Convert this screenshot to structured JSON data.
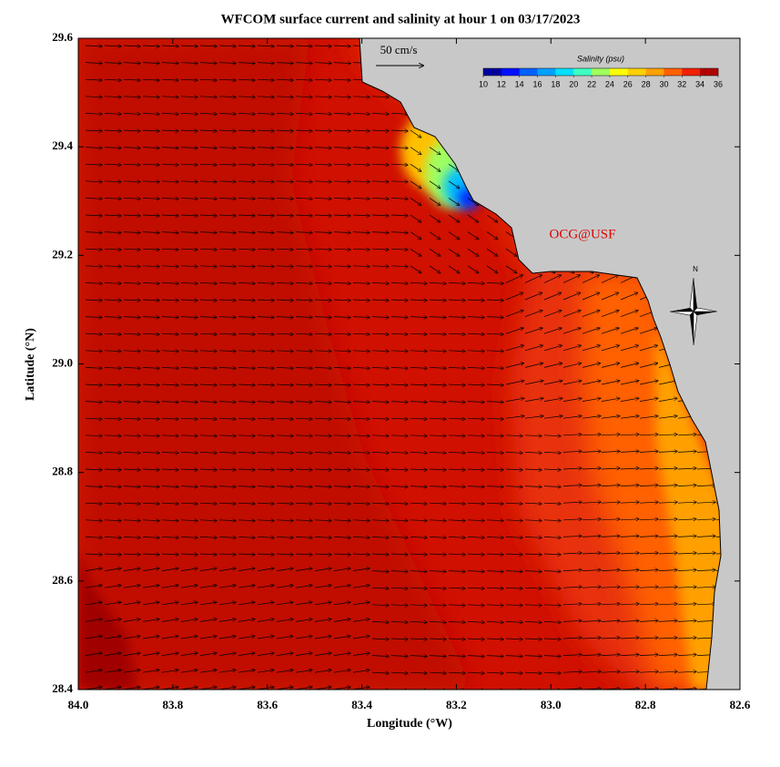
{
  "title": "WFCOM surface current and salinity at hour 1 on 03/17/2023",
  "x_axis": {
    "label": "Longitude (°W)",
    "lim": [
      84.0,
      82.6
    ],
    "ticks": [
      {
        "value": 84,
        "label": "84.0"
      },
      83.8,
      83.6,
      83.4,
      83.2,
      {
        "value": 83,
        "label": "83.0"
      },
      82.8,
      82.6
    ]
  },
  "y_axis": {
    "label": "Latitude (°N)",
    "lim": [
      28.4,
      29.6
    ],
    "ticks": [
      28.4,
      28.6,
      28.8,
      {
        "value": 29,
        "label": "29.0"
      },
      29.2,
      29.4,
      29.6
    ]
  },
  "colorbar": {
    "title": "Salinity (psu)",
    "lim": [
      10,
      36
    ],
    "ticks": [
      10,
      12,
      14,
      16,
      18,
      20,
      22,
      24,
      26,
      28,
      30,
      32,
      34,
      36
    ],
    "colors": [
      "#0000a0",
      "#0010ff",
      "#0060ff",
      "#00a0ff",
      "#00e0ff",
      "#40ffc0",
      "#a0ff60",
      "#ffff00",
      "#ffd000",
      "#ffa000",
      "#ff6000",
      "#f02000",
      "#b00000"
    ]
  },
  "scale_arrow": "50 cm/s",
  "watermark": "OCG@USF",
  "compass": "N"
}
